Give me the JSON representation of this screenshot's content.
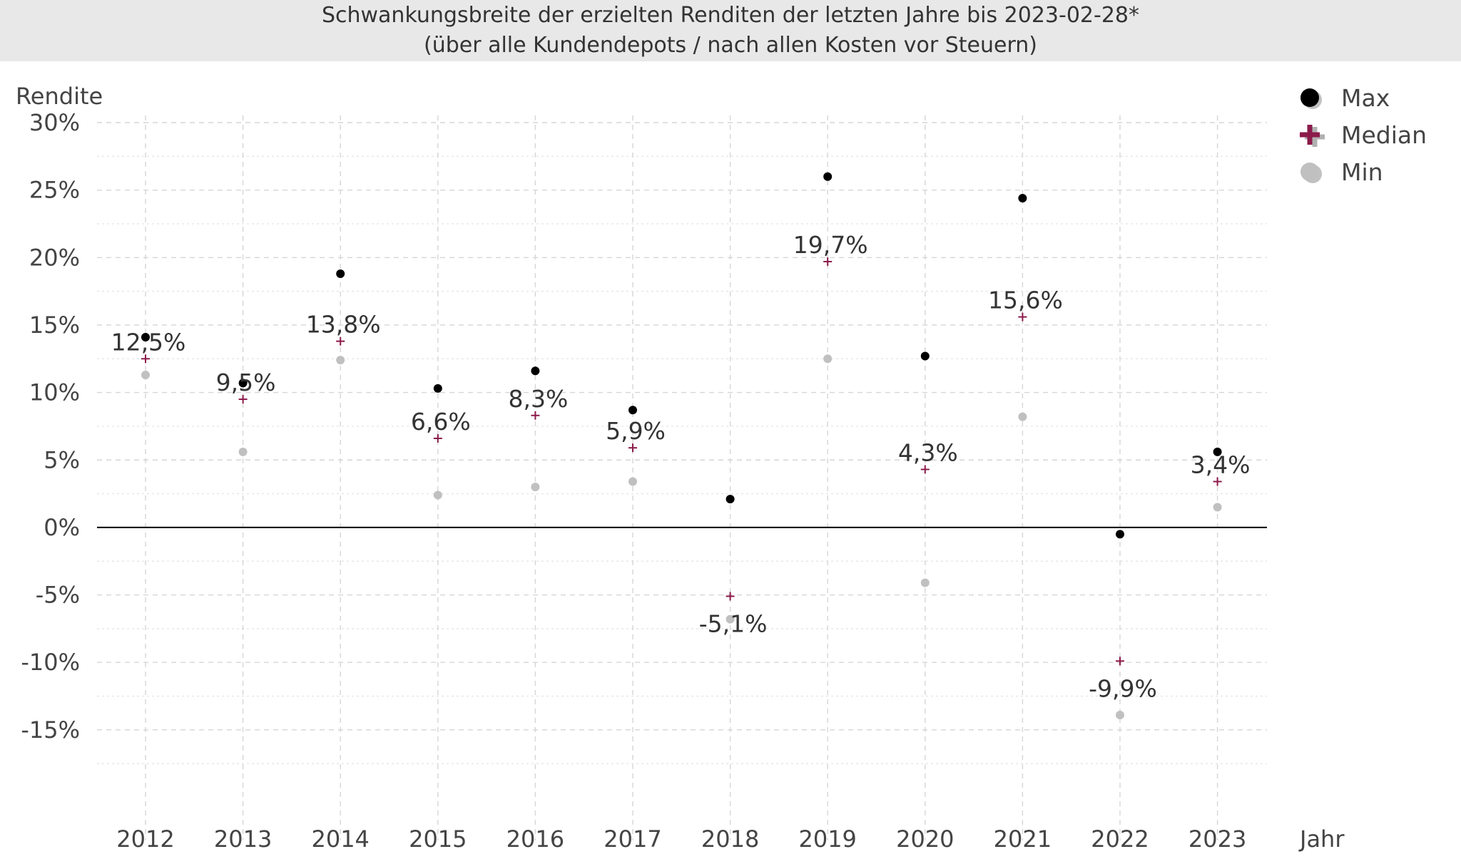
{
  "chart_data": {
    "type": "scatter",
    "title": "Schwankungsbreite der erzielten Renditen der letzten Jahre bis 2023-02-28*",
    "subtitle": "(über alle Kundendepots / nach allen Kosten vor Steuern)",
    "xlabel": "Jahr",
    "ylabel": "Rendite",
    "categories": [
      "2012",
      "2013",
      "2014",
      "2015",
      "2016",
      "2017",
      "2018",
      "2019",
      "2020",
      "2021",
      "2022",
      "2023"
    ],
    "ylim": [
      -20,
      30
    ],
    "yticks": [
      30,
      25,
      20,
      15,
      10,
      5,
      0,
      -5,
      -10,
      -15
    ],
    "ytick_labels": [
      "30%",
      "25%",
      "20%",
      "15%",
      "10%",
      "5%",
      "0%",
      "-5%",
      "-10%",
      "-15%"
    ],
    "grid": true,
    "legend_position": "top-right",
    "series": [
      {
        "name": "Max",
        "color": "#000000",
        "marker": "dot",
        "values": [
          14.1,
          10.7,
          18.8,
          10.3,
          11.6,
          8.7,
          2.1,
          26.0,
          12.7,
          24.4,
          -0.5,
          5.6
        ]
      },
      {
        "name": "Median",
        "color": "#8b1a4a",
        "marker": "plus",
        "values": [
          12.5,
          9.5,
          13.8,
          6.6,
          8.3,
          5.9,
          -5.1,
          19.7,
          4.3,
          15.6,
          -9.9,
          3.4
        ],
        "data_labels": [
          "12,5%",
          "9,5%",
          "13,8%",
          "6,6%",
          "8,3%",
          "5,9%",
          "-5,1%",
          "19,7%",
          "4,3%",
          "15,6%",
          "-9,9%",
          "3,4%"
        ]
      },
      {
        "name": "Min",
        "color": "#c0c0c0",
        "marker": "dot",
        "values": [
          11.3,
          5.6,
          12.4,
          2.4,
          3.0,
          3.4,
          -6.8,
          12.5,
          -4.1,
          8.2,
          -13.9,
          1.5
        ]
      }
    ]
  }
}
